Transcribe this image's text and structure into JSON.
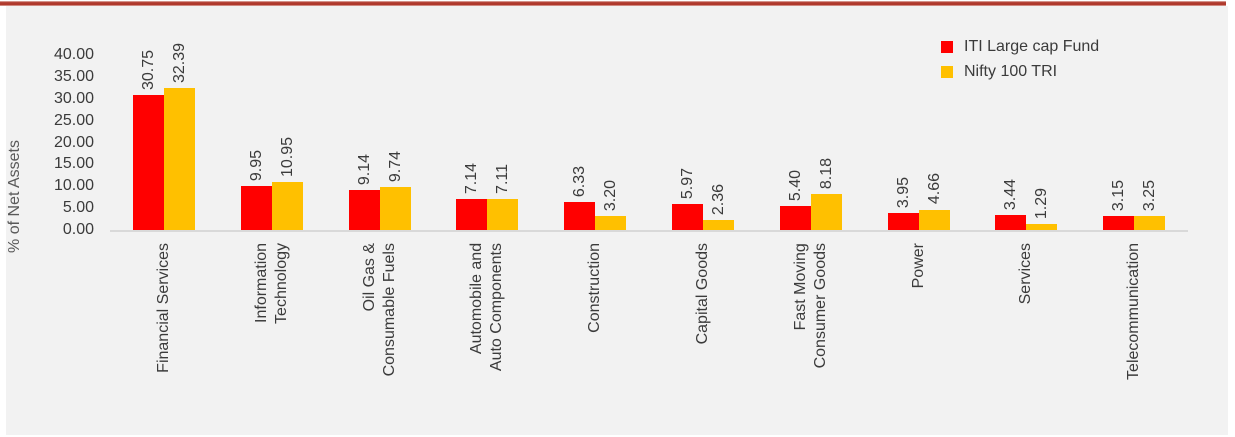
{
  "colors": {
    "series_red": "#FF0000",
    "series_gold": "#FFC000",
    "panel_bg": "#f2f2f2",
    "accent_line": "#b0392c",
    "axis_line": "#d9d9d9",
    "text": "#3b3b3b",
    "axis_title": "#595959"
  },
  "chart_data": {
    "type": "bar",
    "title": "",
    "xlabel": "",
    "ylabel": "% of Net Assets",
    "ylim": [
      0,
      40
    ],
    "ytick_step": 5,
    "ytick_format": "2dp",
    "grid": false,
    "legend_position": "top-right",
    "categories": [
      "Financial Services",
      "Information\nTechnology",
      "Oil Gas &\nConsumable Fuels",
      "Automobile and\nAuto Components",
      "Construction",
      "Capital Goods",
      "Fast Moving\nConsumer Goods",
      "Power",
      "Services",
      "Telecommunication"
    ],
    "series": [
      {
        "name": "ITI Large cap Fund",
        "color": "#FF0000",
        "values": [
          30.75,
          9.95,
          9.14,
          7.14,
          6.33,
          5.97,
          5.4,
          3.95,
          3.44,
          3.15
        ]
      },
      {
        "name": "Nifty 100 TRI",
        "color": "#FFC000",
        "values": [
          32.39,
          10.95,
          9.74,
          7.11,
          3.2,
          2.36,
          8.18,
          4.66,
          1.29,
          3.25
        ]
      }
    ]
  }
}
